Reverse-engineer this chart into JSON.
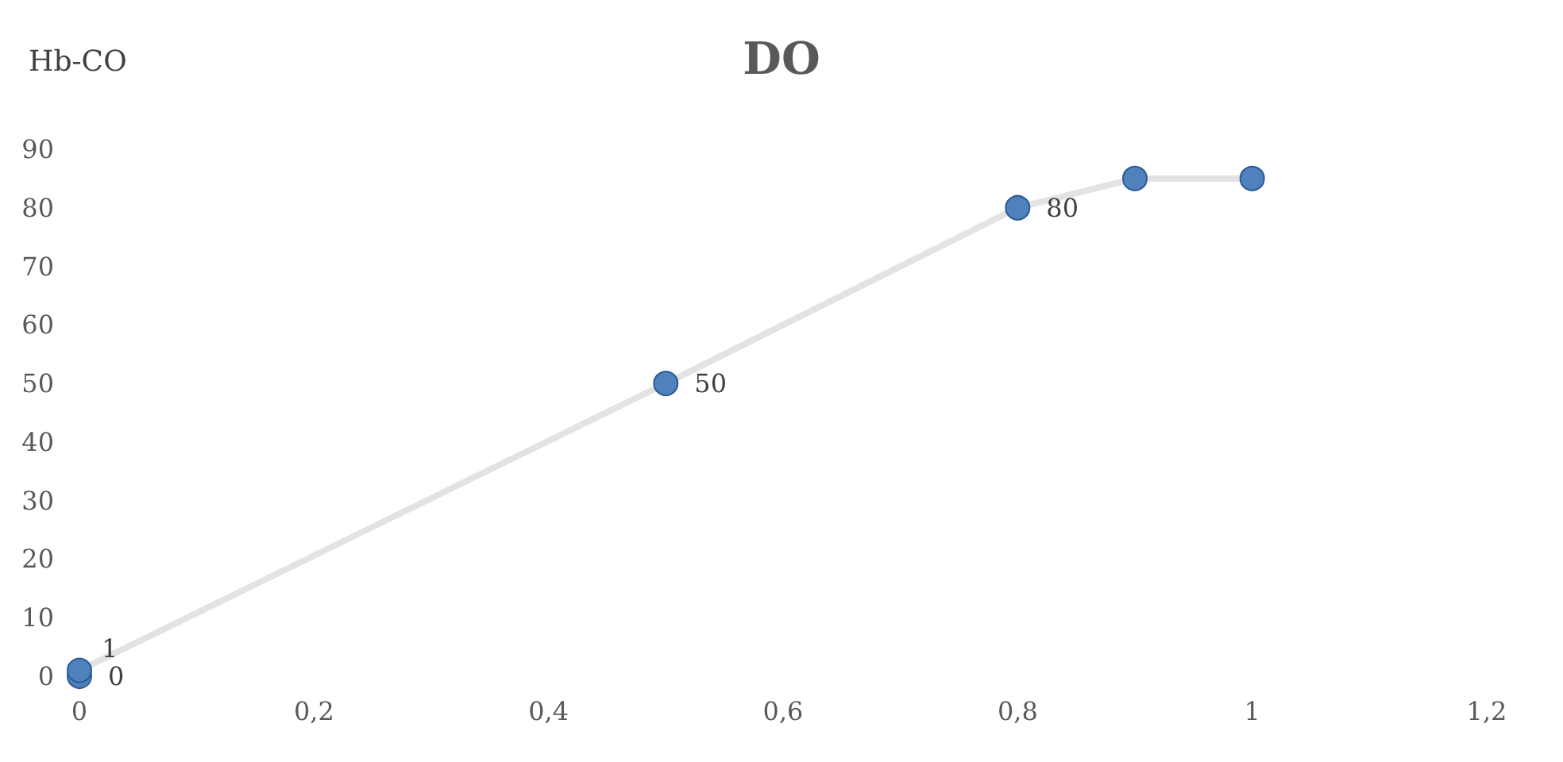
{
  "chart_data": {
    "type": "line",
    "title": "DO",
    "ylabel": "Hb-CO",
    "x": [
      0,
      0,
      0.5,
      0.8,
      0.9,
      1
    ],
    "series": [
      {
        "color": "#4f81bd",
        "values": [
          0,
          1,
          50,
          80,
          85,
          85
        ],
        "value_labels": [
          "0",
          "1",
          "50",
          "80",
          null,
          null
        ]
      }
    ],
    "xlim": [
      0,
      1.2
    ],
    "xticks": [
      0,
      {
        "value": 0.2,
        "label": "0,2"
      },
      {
        "value": 0.4,
        "label": "0,4"
      },
      {
        "value": 0.6,
        "label": "0,6"
      },
      {
        "value": 0.8,
        "label": "0,8"
      },
      1,
      {
        "value": 1.2,
        "label": "1,2"
      }
    ],
    "ylim": [
      0,
      90
    ],
    "yticks": [
      0,
      10,
      20,
      30,
      40,
      50,
      60,
      70,
      80,
      90
    ],
    "grid": false,
    "marker": "circle",
    "line_style": "solid"
  }
}
